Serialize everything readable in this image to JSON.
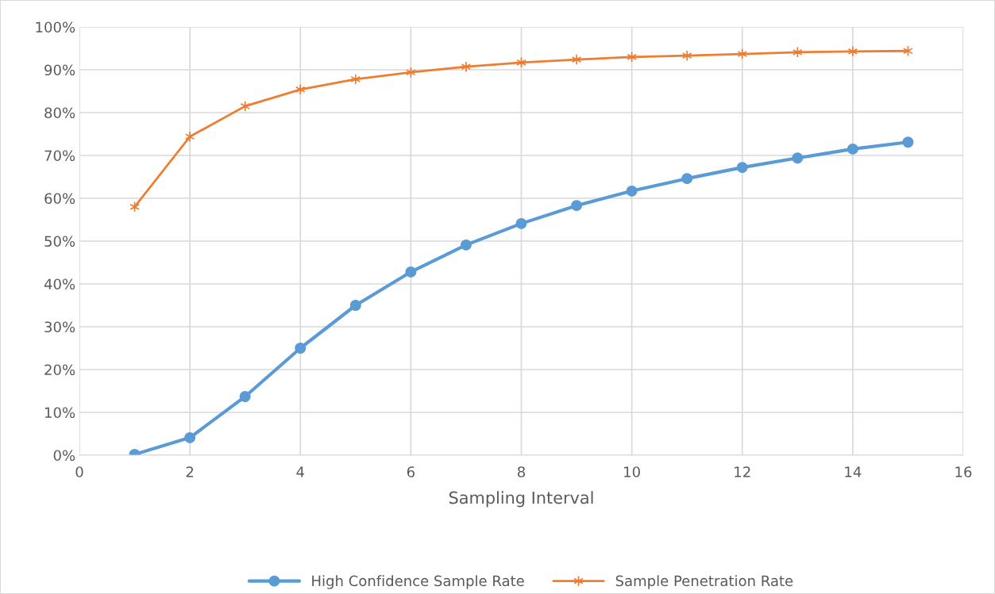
{
  "chart_data": {
    "type": "line",
    "xlabel": "Sampling Interval",
    "x": [
      1,
      2,
      3,
      4,
      5,
      6,
      7,
      8,
      9,
      10,
      11,
      12,
      13,
      14,
      15
    ],
    "series": [
      {
        "name": "High Confidence Sample Rate",
        "color": "#5b9bd5",
        "marker": "circle",
        "values": [
          0.2,
          4.1,
          13.7,
          25.0,
          35.0,
          42.8,
          49.1,
          54.1,
          58.3,
          61.7,
          64.6,
          67.2,
          69.4,
          71.5,
          73.1
        ]
      },
      {
        "name": "Sample Penetration Rate",
        "color": "#ed7d31",
        "marker": "cross",
        "values": [
          58.0,
          74.4,
          81.5,
          85.4,
          87.8,
          89.4,
          90.7,
          91.7,
          92.4,
          93.0,
          93.3,
          93.7,
          94.1,
          94.3,
          94.4
        ]
      }
    ],
    "xlim": [
      0,
      16
    ],
    "xticks": [
      0,
      2,
      4,
      6,
      8,
      10,
      12,
      14,
      16
    ],
    "ylim": [
      0,
      100
    ],
    "yticks": [
      {
        "value": 0,
        "label": "0%"
      },
      {
        "value": 10,
        "label": "10%"
      },
      {
        "value": 20,
        "label": "20%"
      },
      {
        "value": 30,
        "label": "30%"
      },
      {
        "value": 40,
        "label": "40%"
      },
      {
        "value": 50,
        "label": "50%"
      },
      {
        "value": 60,
        "label": "60%"
      },
      {
        "value": 70,
        "label": "70%"
      },
      {
        "value": 80,
        "label": "80%"
      },
      {
        "value": 90,
        "label": "90%"
      },
      {
        "value": 100,
        "label": "100%"
      }
    ],
    "grid": true,
    "legend": "bottom",
    "line_style": "solid"
  }
}
